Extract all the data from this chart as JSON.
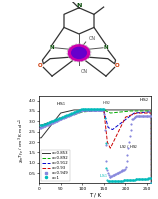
{
  "xlabel": "T / K",
  "xlim": [
    0,
    260
  ],
  "ylim": [
    0.0,
    4.2
  ],
  "yticks": [
    0.5,
    1.0,
    1.5,
    2.0,
    2.5,
    3.0,
    3.5,
    4.0
  ],
  "xticks": [
    0,
    50,
    100,
    150,
    200,
    250
  ],
  "series": [
    {
      "label": "x=0.853",
      "color": "#333333",
      "lw": 0.7,
      "style": "-"
    },
    {
      "label": "x=0.892",
      "color": "#00aa00",
      "lw": 0.7,
      "style": "--"
    },
    {
      "label": "x=0.912",
      "color": "#0000cc",
      "lw": 0.7,
      "style": "--"
    },
    {
      "label": "x=0.93",
      "color": "#cc0000",
      "lw": 0.7,
      "style": "--"
    },
    {
      "label": "x=0.949",
      "color": "#8888dd",
      "lw": 0.7,
      "style": "--"
    },
    {
      "label": "x=1",
      "color": "#00bbbb",
      "lw": 0.7,
      "style": ":"
    }
  ],
  "mol": {
    "fe_color": "#cc00aa",
    "fe_edge": "#880066",
    "fe_inner": "#6600cc",
    "n_color": "#004400",
    "o_color": "#cc3300",
    "bond_color": "#555555",
    "ring_color": "#333333",
    "cn_color": "#555555"
  }
}
